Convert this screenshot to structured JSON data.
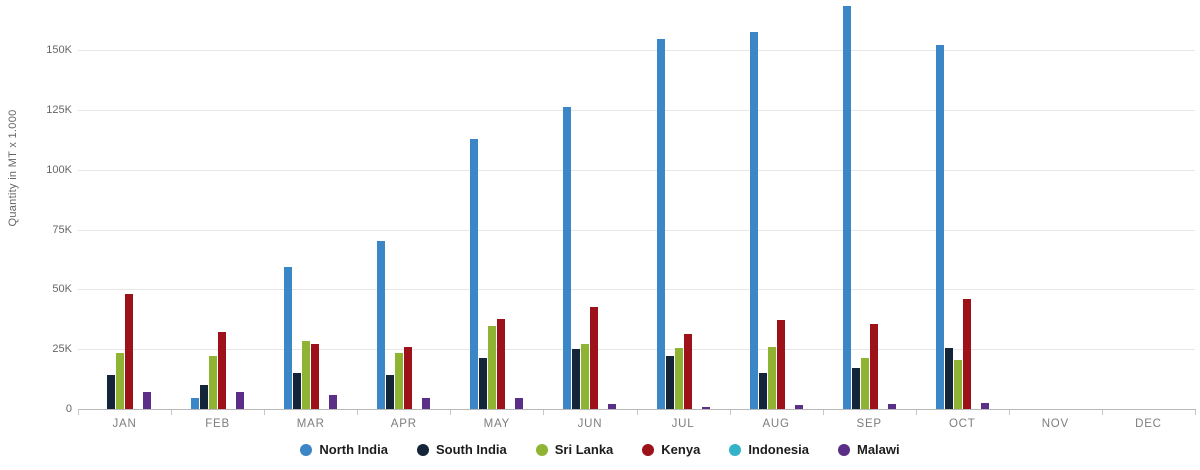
{
  "chart_data": {
    "type": "bar",
    "title": "",
    "ylabel": "Quantity in MT x 1.000",
    "xlabel": "",
    "categories": [
      "JAN",
      "FEB",
      "MAR",
      "APR",
      "MAY",
      "JUN",
      "JUL",
      "AUG",
      "SEP",
      "OCT",
      "NOV",
      "DEC"
    ],
    "y_tick_labels": [
      "0",
      "25K",
      "50K",
      "75K",
      "100K",
      "125K",
      "150K"
    ],
    "y_tick_values": [
      0,
      25,
      50,
      75,
      100,
      125,
      150
    ],
    "ylim": [
      0,
      171
    ],
    "unit": "thousand MT",
    "grid": true,
    "legend_position": "bottom",
    "series": [
      {
        "name": "North India",
        "color": "#3b86c6",
        "values": [
          0,
          4.5,
          59.5,
          70,
          113,
          126,
          154.5,
          157.5,
          168.5,
          152,
          0,
          0
        ]
      },
      {
        "name": "South India",
        "color": "#152539",
        "values": [
          14,
          10,
          15,
          14,
          21.5,
          25,
          22,
          15,
          17,
          25.5,
          0,
          0
        ]
      },
      {
        "name": "Sri Lanka",
        "color": "#8fb434",
        "values": [
          23.5,
          22,
          28.5,
          23.5,
          34.5,
          27,
          25.5,
          26,
          21.5,
          20.5,
          0,
          0
        ]
      },
      {
        "name": "Kenya",
        "color": "#9d1218",
        "values": [
          48,
          32,
          27,
          26,
          37.5,
          42.5,
          31.5,
          37,
          35.5,
          46,
          0,
          0
        ]
      },
      {
        "name": "Indonesia",
        "color": "#33b3c9",
        "values": [
          0,
          0,
          0,
          0,
          0,
          0,
          0,
          0,
          0,
          0,
          0,
          0
        ]
      },
      {
        "name": "Malawi",
        "color": "#5b2e87",
        "values": [
          7,
          7,
          6,
          4.5,
          4.5,
          2,
          1,
          1.5,
          2,
          2.5,
          0,
          0
        ]
      }
    ]
  }
}
